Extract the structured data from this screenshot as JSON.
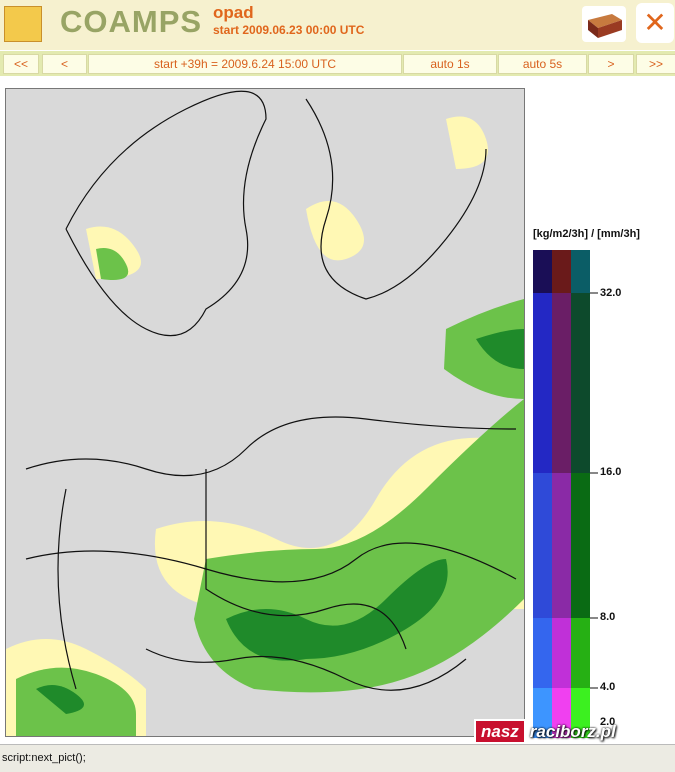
{
  "header": {
    "title": "COAMPS",
    "product": "opad",
    "start": "start 2009.06.23 00:00 UTC",
    "close": "✕"
  },
  "nav": {
    "buttons": [
      "<<",
      "<",
      "start +39h  =  2009.6.24 15:00 UTC",
      "auto 1s",
      "auto 5s",
      ">",
      ">>"
    ]
  },
  "legend": {
    "title": "[kg/m2/3h]  /  [mm/3h]",
    "labels": [
      "32.0",
      "16.0",
      "8.0",
      "4.0",
      "2.0"
    ]
  },
  "status": "script:next_pict();",
  "watermark": [
    "nasz",
    "raciborz.pl"
  ]
}
